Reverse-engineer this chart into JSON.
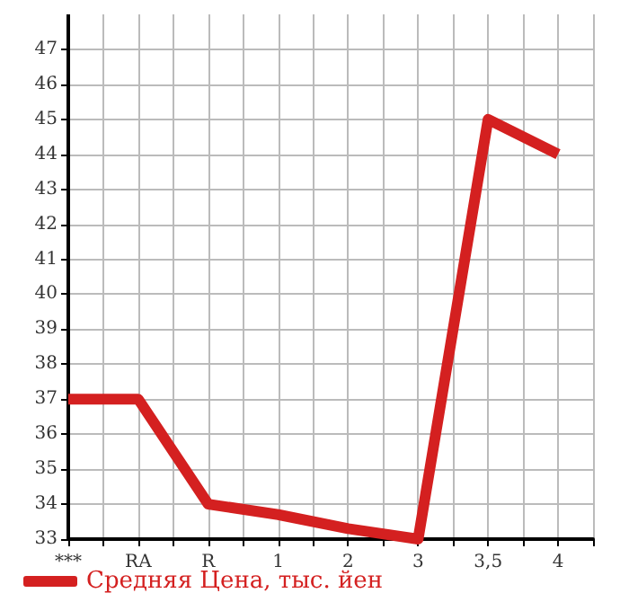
{
  "chart_data": {
    "type": "line",
    "categories": [
      "***",
      "RA",
      "R",
      "1",
      "2",
      "3",
      "3,5",
      "4"
    ],
    "series": [
      {
        "name": "Средняя Цена, тыс. йен",
        "color": "#d42020",
        "values": [
          37,
          37,
          34,
          33.7,
          33.3,
          33,
          45,
          44
        ]
      }
    ],
    "ylim": [
      33,
      48
    ],
    "yticks": [
      33,
      34,
      35,
      36,
      37,
      38,
      39,
      40,
      41,
      42,
      43,
      44,
      45,
      46,
      47
    ],
    "grid": true,
    "legend": "bottom left",
    "marker": "none",
    "line_style": "solid"
  }
}
